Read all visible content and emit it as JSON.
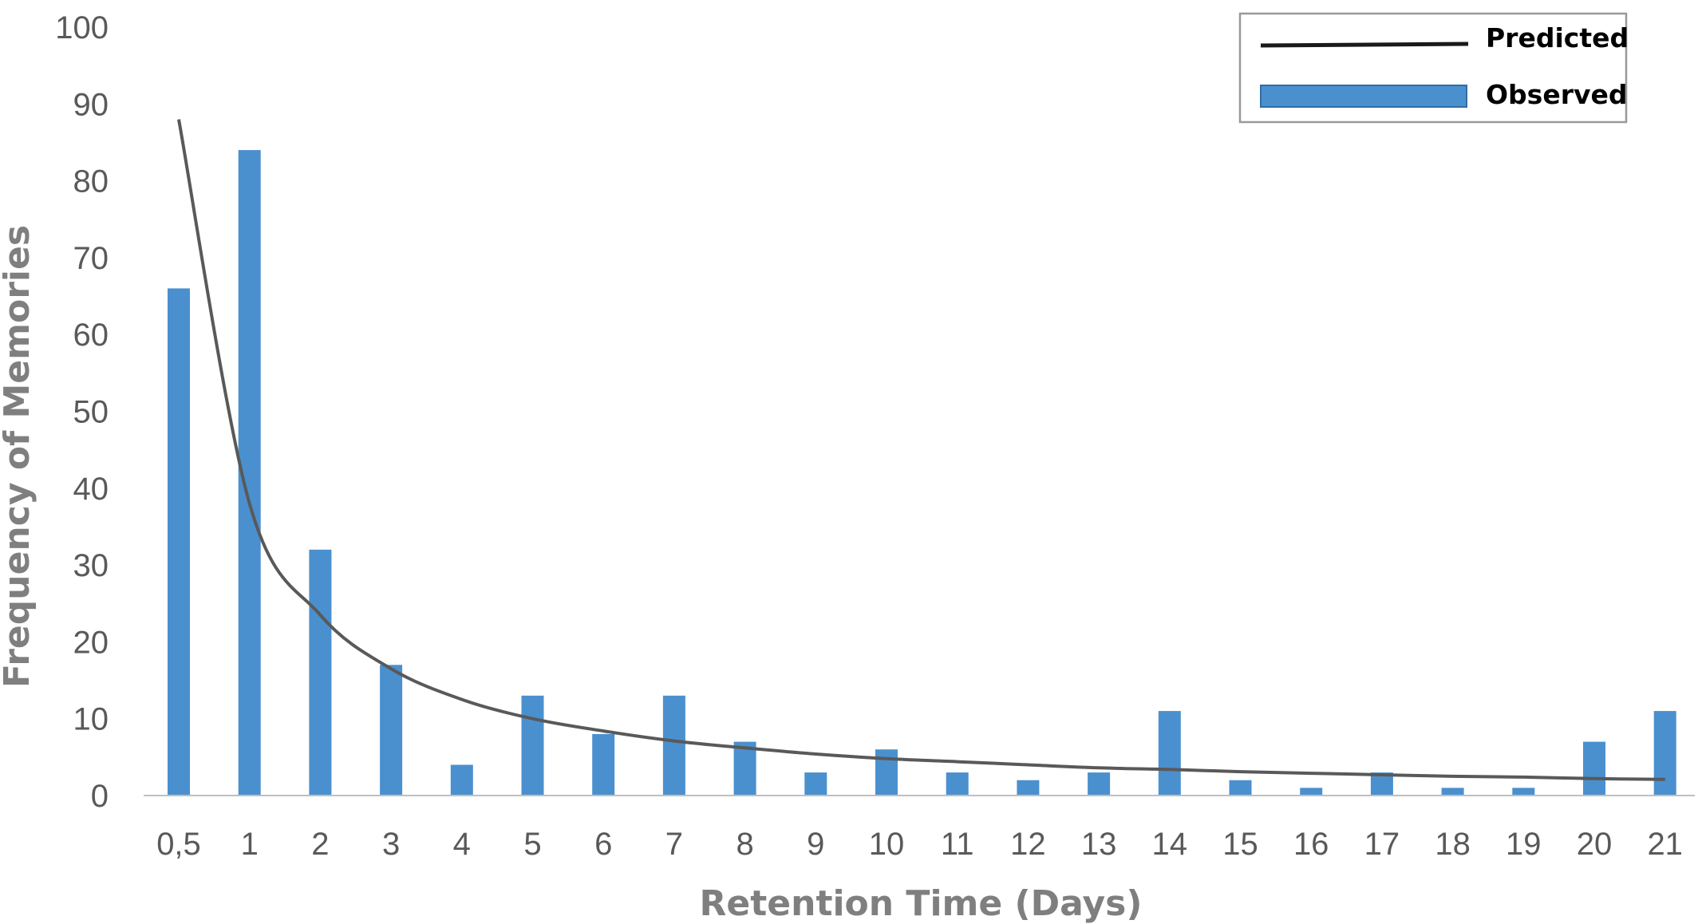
{
  "chart_data": {
    "type": "bar",
    "title": "",
    "xlabel": "Retention Time (Days)",
    "ylabel": "Frequency of Memories",
    "ylim": [
      0,
      100
    ],
    "yticks": [
      0,
      10,
      20,
      30,
      40,
      50,
      60,
      70,
      80,
      90,
      100
    ],
    "grid": false,
    "legend_position": "top-right",
    "categories": [
      "0,5",
      "1",
      "2",
      "3",
      "4",
      "5",
      "6",
      "7",
      "8",
      "9",
      "10",
      "11",
      "12",
      "13",
      "14",
      "15",
      "16",
      "17",
      "18",
      "19",
      "20",
      "21"
    ],
    "series": [
      {
        "name": "Observed",
        "kind": "bar",
        "color": "#4a90cf",
        "values": [
          66,
          84,
          32,
          17,
          4,
          13,
          8,
          13,
          7,
          3,
          6,
          3,
          2,
          3,
          11,
          2,
          1,
          3,
          1,
          1,
          7,
          11
        ]
      },
      {
        "name": "Predicted",
        "kind": "line",
        "color": "#595959",
        "legend_color": "#1a1a1a",
        "x": [
          0.5,
          1,
          2,
          3,
          4,
          5,
          6,
          7,
          8,
          9,
          10,
          11,
          12,
          13,
          14,
          15,
          16,
          17,
          18,
          19,
          20,
          21
        ],
        "values": [
          88,
          38,
          23.5,
          16.5,
          12.5,
          10,
          8.4,
          7.1,
          6.2,
          5.4,
          4.8,
          4.4,
          4.0,
          3.6,
          3.4,
          3.1,
          2.9,
          2.7,
          2.5,
          2.4,
          2.2,
          2.1
        ]
      }
    ]
  }
}
